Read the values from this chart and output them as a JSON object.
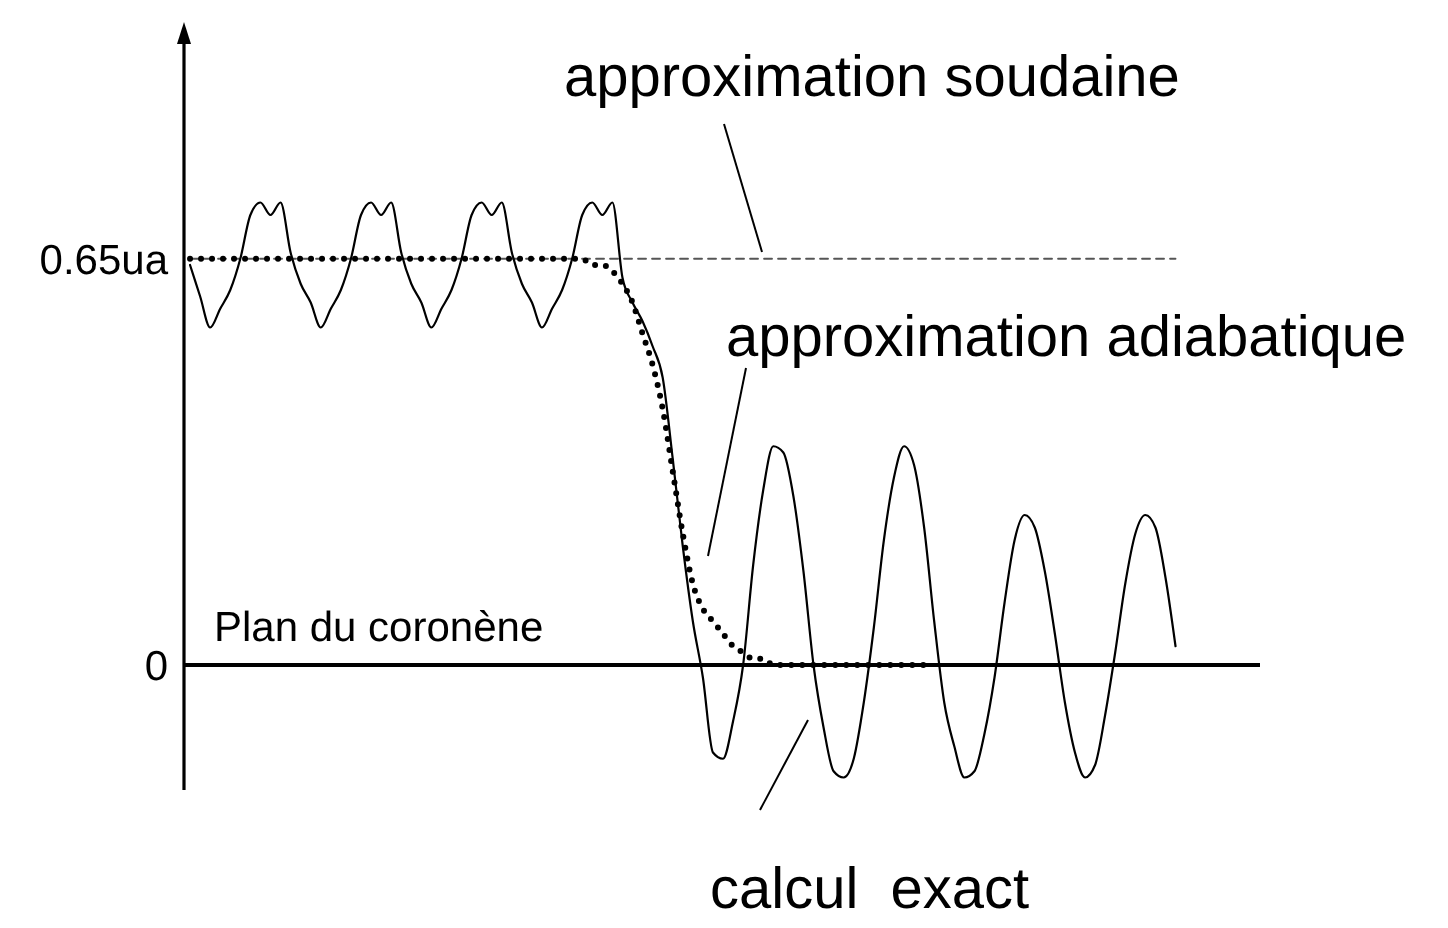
{
  "chart_data": {
    "type": "line",
    "categories": [
      null,
      null,
      null,
      null,
      null,
      null,
      null,
      null,
      null,
      null,
      null,
      null,
      null,
      null,
      null,
      null,
      null,
      null,
      null,
      null,
      null,
      null,
      null,
      null,
      null,
      null,
      null,
      null,
      null,
      null,
      null,
      null,
      null,
      null,
      null,
      null,
      null,
      null,
      null,
      null,
      null,
      null,
      null,
      null,
      null,
      null,
      null,
      null,
      null,
      null,
      null,
      null,
      null,
      null,
      null,
      null,
      null,
      null,
      null,
      null,
      null,
      null,
      null,
      null,
      null,
      null,
      null,
      null,
      null,
      null,
      null,
      null,
      null,
      null,
      null,
      null,
      null,
      null,
      null,
      null,
      null,
      null,
      null,
      null,
      null,
      null,
      null,
      null,
      null,
      null,
      null,
      null,
      null,
      null,
      null,
      null,
      null,
      null,
      null
    ],
    "ylim": [
      -0.2,
      1.0
    ],
    "yticks": [
      {
        "value": 0,
        "label": "0"
      },
      {
        "value": 0.65,
        "label": "0.65ua"
      }
    ],
    "tick_labels": "y",
    "marker": "none",
    "series": [
      {
        "color": "#555555",
        "line_style": "dashed",
        "values": [
          0.65,
          0.65,
          0.65,
          0.65,
          0.65,
          0.65,
          0.65,
          0.65,
          0.65,
          0.65,
          0.65,
          0.65,
          0.65,
          0.65,
          0.65,
          0.65,
          0.65,
          0.65,
          0.65,
          0.65,
          0.65,
          0.65,
          0.65,
          0.65,
          0.65,
          0.65,
          0.65,
          0.65,
          0.65,
          0.65,
          0.65,
          0.65,
          0.65,
          0.65,
          0.65,
          0.65,
          0.65,
          0.65,
          0.65,
          0.65,
          0.65,
          0.65,
          0.65,
          0.65,
          0.65,
          0.65,
          0.65,
          0.65,
          0.65,
          0.65,
          0.65,
          0.65,
          0.65,
          0.65,
          0.65,
          0.65,
          0.65,
          0.65,
          0.65,
          0.65,
          0.65,
          0.65,
          0.65,
          0.65,
          0.65,
          0.65,
          0.65,
          0.65,
          0.65,
          0.65,
          0.65,
          0.65,
          0.65,
          0.65,
          0.65,
          0.65,
          0.65,
          0.65,
          0.65,
          0.65,
          0.65,
          0.65,
          0.65,
          0.65,
          0.65,
          0.65,
          0.65,
          0.65,
          0.65,
          0.65,
          0.65,
          0.65,
          0.65,
          0.65,
          0.65,
          0.65,
          0.65,
          0.65,
          0.65
        ]
      },
      {
        "color": "#000000",
        "line_style": "solid",
        "values": [
          0.64,
          0.59,
          0.54,
          0.57,
          0.6,
          0.65,
          0.72,
          0.74,
          0.72,
          0.74,
          0.66,
          0.61,
          0.58,
          0.54,
          0.57,
          0.6,
          0.65,
          0.72,
          0.74,
          0.72,
          0.74,
          0.66,
          0.61,
          0.58,
          0.54,
          0.57,
          0.6,
          0.65,
          0.72,
          0.74,
          0.72,
          0.74,
          0.66,
          0.61,
          0.58,
          0.54,
          0.57,
          0.6,
          0.65,
          0.72,
          0.74,
          0.72,
          0.74,
          0.62,
          0.58,
          0.55,
          0.51,
          0.46,
          0.33,
          0.19,
          0.07,
          -0.02,
          -0.14,
          -0.15,
          -0.09,
          0,
          0.16,
          0.28,
          0.35,
          0.34,
          0.27,
          0.15,
          0,
          -0.1,
          -0.17,
          -0.18,
          -0.15,
          -0.06,
          0.06,
          0.2,
          0.3,
          0.35,
          0.32,
          0.22,
          0.07,
          -0.06,
          -0.13,
          -0.18,
          -0.17,
          -0.11,
          -0.02,
          0.1,
          0.2,
          0.24,
          0.22,
          0.15,
          0.05,
          -0.06,
          -0.14,
          -0.18,
          -0.16,
          -0.08,
          0.02,
          0.13,
          0.21,
          0.24,
          0.22,
          0.14,
          0.03
        ]
      },
      {
        "color": "#000000",
        "line_style": "dotted",
        "values": [
          0.65,
          0.65,
          0.65,
          0.65,
          0.65,
          0.65,
          0.65,
          0.65,
          0.65,
          0.65,
          0.65,
          0.65,
          0.65,
          0.65,
          0.65,
          0.65,
          0.65,
          0.65,
          0.65,
          0.65,
          0.65,
          0.65,
          0.65,
          0.65,
          0.65,
          0.65,
          0.65,
          0.65,
          0.65,
          0.65,
          0.65,
          0.65,
          0.65,
          0.65,
          0.65,
          0.65,
          0.65,
          0.65,
          0.65,
          0.65,
          0.64,
          0.64,
          0.63,
          0.61,
          0.58,
          0.53,
          0.48,
          0.41,
          0.31,
          0.21,
          0.13,
          0.09,
          0.07,
          0.05,
          0.03,
          0.02,
          0.01,
          0.01,
          0,
          0,
          0,
          0,
          0,
          0,
          0,
          0,
          0,
          0,
          0,
          0,
          0,
          0,
          0,
          0,
          0,
          null,
          null,
          null,
          null,
          null,
          null,
          null,
          null,
          null,
          null,
          null,
          null,
          null,
          null,
          null,
          null,
          null,
          null,
          null,
          null,
          null,
          null,
          null,
          null
        ]
      }
    ],
    "annotations": [
      "approximation soudaine",
      "approximation adiabatique",
      "calcul  exact"
    ],
    "ref_lines": [
      {
        "axis": "y",
        "value": 0,
        "label": "Plan du coronène",
        "color": "#000000"
      }
    ]
  }
}
